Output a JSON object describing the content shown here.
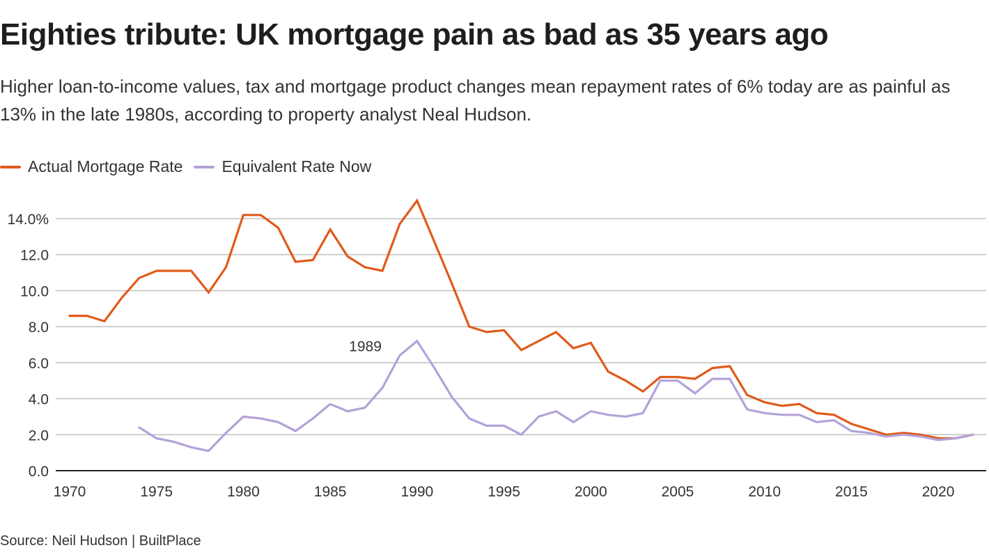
{
  "title": "Eighties tribute: UK mortgage pain as bad as 35 years ago",
  "subtitle": "Higher loan-to-income values, tax and mortgage product changes mean repayment rates of 6% today are as painful as 13% in the late 1980s, according to property analyst Neal Hudson.",
  "source": "Source: Neil Hudson | BuiltPlace",
  "colors": {
    "actual": "#e05a1a",
    "equivalent": "#b3a2d9",
    "grid": "#c4c4c4",
    "axis": "#222222"
  },
  "chart_data": {
    "type": "line",
    "title": "Eighties tribute: UK mortgage pain as bad as 35 years ago",
    "xlabel": "",
    "ylabel": "",
    "xlim": [
      1970,
      2022
    ],
    "ylim": [
      0,
      15
    ],
    "grid": true,
    "legend_position": "top-left",
    "x_ticks": [
      1970,
      1975,
      1980,
      1985,
      1990,
      1995,
      2000,
      2005,
      2010,
      2015,
      2020
    ],
    "x_tick_labels": [
      "1970",
      "1975",
      "1980",
      "1985",
      "1990",
      "1995",
      "2000",
      "2005",
      "2010",
      "2015",
      "2020"
    ],
    "y_ticks": [
      0,
      2,
      4,
      6,
      8,
      10,
      12,
      14
    ],
    "y_tick_labels": [
      "0.0",
      "2.0",
      "4.0",
      "6.0",
      "8.0",
      "10.0",
      "12.0",
      "14.0%"
    ],
    "series": [
      {
        "name": "Actual Mortgage Rate",
        "key": "actual",
        "x": [
          1970,
          1971,
          1972,
          1973,
          1974,
          1975,
          1976,
          1977,
          1978,
          1979,
          1980,
          1981,
          1982,
          1983,
          1984,
          1985,
          1986,
          1987,
          1988,
          1989,
          1990,
          1991,
          1992,
          1993,
          1994,
          1995,
          1996,
          1997,
          1998,
          1999,
          2000,
          2001,
          2002,
          2003,
          2004,
          2005,
          2006,
          2007,
          2008,
          2009,
          2010,
          2011,
          2012,
          2013,
          2014,
          2015,
          2016,
          2017,
          2018,
          2019,
          2020,
          2021,
          2022
        ],
        "values": [
          8.6,
          8.6,
          8.3,
          9.6,
          10.7,
          11.1,
          11.1,
          11.1,
          9.9,
          11.3,
          14.2,
          14.2,
          13.5,
          11.6,
          11.7,
          13.4,
          11.9,
          11.3,
          11.1,
          13.7,
          15.0,
          12.7,
          10.4,
          8.0,
          7.7,
          7.8,
          6.7,
          7.2,
          7.7,
          6.8,
          7.1,
          5.5,
          5.0,
          4.4,
          5.2,
          5.2,
          5.1,
          5.7,
          5.8,
          4.2,
          3.8,
          3.6,
          3.7,
          3.2,
          3.1,
          2.6,
          2.3,
          2.0,
          2.1,
          2.0,
          1.8,
          1.8,
          2.0
        ]
      },
      {
        "name": "Equivalent Rate Now",
        "key": "equivalent",
        "x": [
          1974,
          1975,
          1976,
          1977,
          1978,
          1979,
          1980,
          1981,
          1982,
          1983,
          1984,
          1985,
          1986,
          1987,
          1988,
          1989,
          1990,
          1991,
          1992,
          1993,
          1994,
          1995,
          1996,
          1997,
          1998,
          1999,
          2000,
          2001,
          2002,
          2003,
          2004,
          2005,
          2006,
          2007,
          2008,
          2009,
          2010,
          2011,
          2012,
          2013,
          2014,
          2015,
          2016,
          2017,
          2018,
          2019,
          2020,
          2021,
          2022
        ],
        "values": [
          2.4,
          1.8,
          1.6,
          1.3,
          1.1,
          2.1,
          3.0,
          2.9,
          2.7,
          2.2,
          2.9,
          3.7,
          3.3,
          3.5,
          4.6,
          6.4,
          7.2,
          5.7,
          4.1,
          2.9,
          2.5,
          2.5,
          2.0,
          3.0,
          3.3,
          2.7,
          3.3,
          3.1,
          3.0,
          3.2,
          5.0,
          5.0,
          4.3,
          5.1,
          5.1,
          3.4,
          3.2,
          3.1,
          3.1,
          2.7,
          2.8,
          2.2,
          2.1,
          1.9,
          2.0,
          1.9,
          1.7,
          1.8,
          2.0
        ]
      }
    ],
    "annotations": [
      {
        "text": "1989",
        "x": 1989,
        "y": 6.4,
        "series": "Equivalent Rate Now"
      }
    ]
  }
}
